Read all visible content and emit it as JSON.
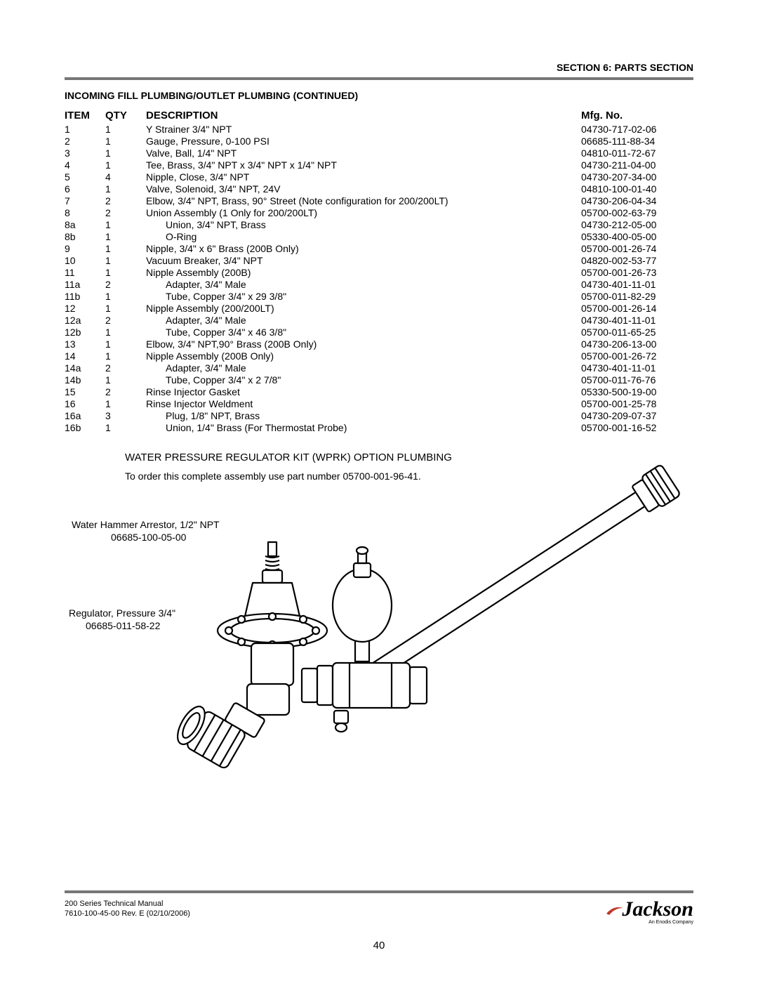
{
  "header_right": "SECTION 6: PARTS SECTION",
  "subheader": "INCOMING FILL PLUMBING/OUTLET PLUMBING (CONTINUED)",
  "columns": {
    "item": "ITEM",
    "qty": "QTY",
    "desc": "DESCRIPTION",
    "mfg": "Mfg. No."
  },
  "rows": [
    {
      "item": "1",
      "qty": "1",
      "desc": "Y Strainer 3/4\" NPT",
      "mfg": "04730-717-02-06",
      "indent": false
    },
    {
      "item": "2",
      "qty": "1",
      "desc": "Gauge, Pressure, 0-100 PSI",
      "mfg": "06685-111-88-34",
      "indent": false
    },
    {
      "item": "3",
      "qty": "1",
      "desc": "Valve, Ball, 1/4\" NPT",
      "mfg": "04810-011-72-67",
      "indent": false
    },
    {
      "item": "4",
      "qty": "1",
      "desc": "Tee, Brass, 3/4\" NPT x 3/4\" NPT x 1/4\" NPT",
      "mfg": "04730-211-04-00",
      "indent": false
    },
    {
      "item": "5",
      "qty": "4",
      "desc": "Nipple, Close, 3/4\" NPT",
      "mfg": "04730-207-34-00",
      "indent": false
    },
    {
      "item": "6",
      "qty": "1",
      "desc": "Valve, Solenoid, 3/4\" NPT, 24V",
      "mfg": "04810-100-01-40",
      "indent": false
    },
    {
      "item": "7",
      "qty": "2",
      "desc": "Elbow, 3/4\" NPT, Brass, 90° Street (Note configuration for 200/200LT)",
      "mfg": "04730-206-04-34",
      "indent": false
    },
    {
      "item": "8",
      "qty": "2",
      "desc": "Union Assembly (1 Only for 200/200LT)",
      "mfg": "05700-002-63-79",
      "indent": false
    },
    {
      "item": "8a",
      "qty": "1",
      "desc": "Union, 3/4\" NPT, Brass",
      "mfg": "04730-212-05-00",
      "indent": true
    },
    {
      "item": "8b",
      "qty": "1",
      "desc": "O-Ring",
      "mfg": "05330-400-05-00",
      "indent": true
    },
    {
      "item": "9",
      "qty": "1",
      "desc": "Nipple, 3/4\" x 6\" Brass (200B Only)",
      "mfg": "05700-001-26-74",
      "indent": false
    },
    {
      "item": "10",
      "qty": "1",
      "desc": "Vacuum Breaker, 3/4\" NPT",
      "mfg": "04820-002-53-77",
      "indent": false
    },
    {
      "item": "11",
      "qty": "1",
      "desc": "Nipple Assembly (200B)",
      "mfg": "05700-001-26-73",
      "indent": false
    },
    {
      "item": "11a",
      "qty": "2",
      "desc": "Adapter, 3/4\" Male",
      "mfg": "04730-401-11-01",
      "indent": true
    },
    {
      "item": "11b",
      "qty": "1",
      "desc": "Tube, Copper 3/4\" x 29 3/8\"",
      "mfg": "05700-011-82-29",
      "indent": true
    },
    {
      "item": "12",
      "qty": "1",
      "desc": "Nipple Assembly (200/200LT)",
      "mfg": "05700-001-26-14",
      "indent": false
    },
    {
      "item": "12a",
      "qty": "2",
      "desc": "Adapter, 3/4\" Male",
      "mfg": "04730-401-11-01",
      "indent": true
    },
    {
      "item": "12b",
      "qty": "1",
      "desc": "Tube, Copper 3/4\" x 46 3/8\"",
      "mfg": "05700-011-65-25",
      "indent": true
    },
    {
      "item": "13",
      "qty": "1",
      "desc": "Elbow, 3/4\" NPT,90° Brass (200B Only)",
      "mfg": "04730-206-13-00",
      "indent": false
    },
    {
      "item": "14",
      "qty": "1",
      "desc": "Nipple Assembly (200B Only)",
      "mfg": "05700-001-26-72",
      "indent": false
    },
    {
      "item": "14a",
      "qty": "2",
      "desc": "Adapter, 3/4\" Male",
      "mfg": "04730-401-11-01",
      "indent": true
    },
    {
      "item": "14b",
      "qty": "1",
      "desc": "Tube, Copper 3/4\" x 2 7/8\"",
      "mfg": "05700-011-76-76",
      "indent": true
    },
    {
      "item": "15",
      "qty": "2",
      "desc": "Rinse Injector Gasket",
      "mfg": "05330-500-19-00",
      "indent": false
    },
    {
      "item": "16",
      "qty": "1",
      "desc": "Rinse Injector Weldment",
      "mfg": "05700-001-25-78",
      "indent": false
    },
    {
      "item": "16a",
      "qty": "3",
      "desc": "Plug, 1/8\" NPT, Brass",
      "mfg": "04730-209-07-37",
      "indent": true
    },
    {
      "item": "16b",
      "qty": "1",
      "desc": "Union, 1/4\" Brass (For Thermostat Probe)",
      "mfg": "05700-001-16-52",
      "indent": true
    }
  ],
  "section2": {
    "title": "WATER PRESSURE REGULATOR KIT (WPRK) OPTION PLUMBING",
    "subtitle": "To order this complete assembly use part number 05700-001-96-41.",
    "callout1_line1": "Water Hammer Arrestor, 1/2\" NPT",
    "callout1_line2": "06685-100-05-00",
    "callout2_line1": "Regulator, Pressure 3/4\"",
    "callout2_line2": "06685-011-58-22"
  },
  "footer": {
    "line1": "200 Series Technical Manual",
    "line2": "7610-100-45-00 Rev. E (02/10/2006)"
  },
  "logo": {
    "text": "Jackson",
    "tag": "An Enodis Company"
  },
  "pagenum": "40",
  "style": {
    "rule_color": "#777777",
    "body_font_size_pt": 10.5,
    "header_font_size_pt": 10.5,
    "footer_font_size_pt": 8
  }
}
